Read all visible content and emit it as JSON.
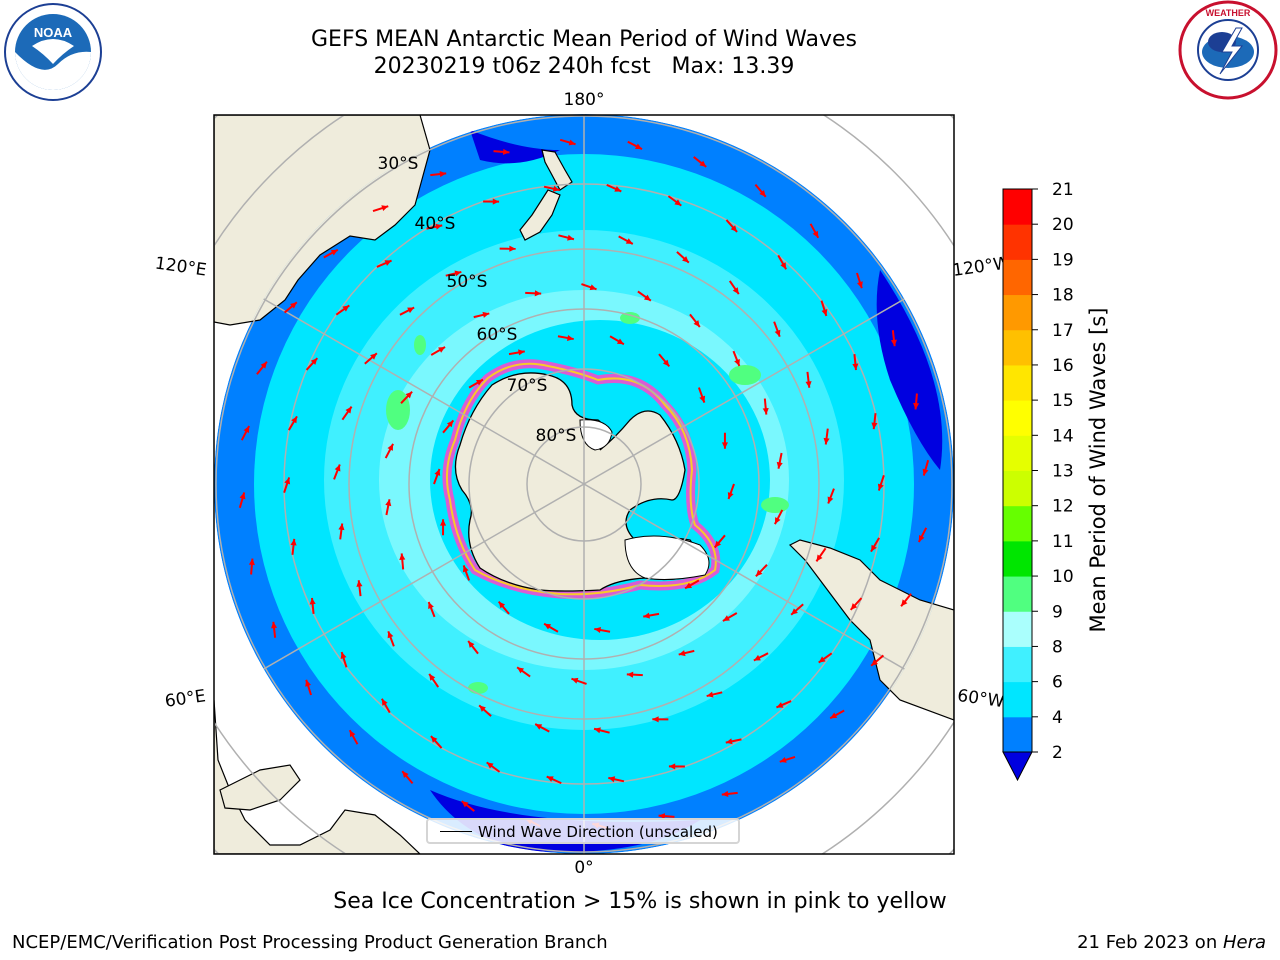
{
  "title": {
    "line1": "GEFS MEAN Antarctic Mean Period of Wind Waves",
    "line2": "20230219 t06z 240h fcst   Max: 13.39"
  },
  "logos": {
    "left": "NOAA",
    "right": "NATIONAL WEATHER SERVICE"
  },
  "map": {
    "projection": "south-polar-stereographic",
    "longitude_labels": [
      "180°",
      "120°E",
      "120°W",
      "60°E",
      "60°W",
      "0°"
    ],
    "latitude_labels": [
      "30°S",
      "40°S",
      "50°S",
      "60°S",
      "70°S",
      "80°S"
    ],
    "legend_label": "Wind Wave Direction (unscaled)",
    "arrow_color": "#ff0000"
  },
  "colorbar": {
    "label": "Mean Period of Wind Waves [s]",
    "ticks": [
      2,
      4,
      6,
      8,
      9,
      10,
      11,
      12,
      13,
      14,
      15,
      16,
      17,
      18,
      19,
      20,
      21
    ],
    "colors": [
      "#0000e0",
      "#0080ff",
      "#00e6ff",
      "#40f0ff",
      "#aafffd",
      "#50ff80",
      "#00e600",
      "#66ff00",
      "#ccff00",
      "#e5ff00",
      "#ffff00",
      "#ffe600",
      "#ffc000",
      "#ff9900",
      "#ff6600",
      "#ff3300",
      "#ff0000"
    ],
    "extend": "min"
  },
  "caption": "Sea Ice Concentration > 15% is shown in pink to yellow",
  "footer": {
    "left": "NCEP/EMC/Verification Post Processing Product Generation Branch",
    "right_date": "21 Feb 2023 on ",
    "right_host": "Hera"
  }
}
